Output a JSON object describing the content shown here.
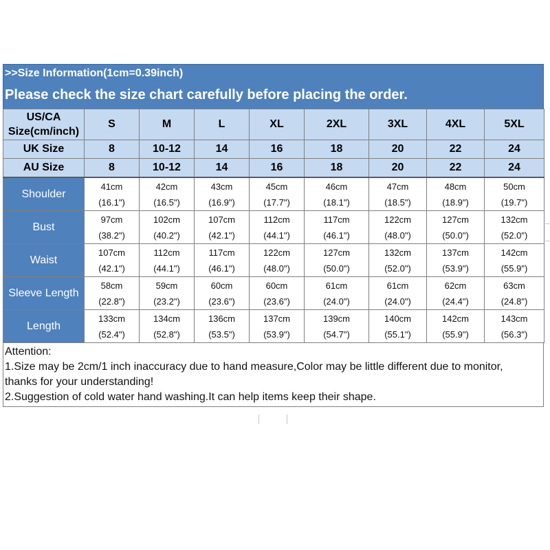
{
  "header": {
    "info": ">>Size Information(1cm=0.39inch)",
    "notice": "Please check the size chart carefully before placing the order."
  },
  "columns": {
    "us_label_line1": "US/CA",
    "us_label_line2": "Size(cm/inch)",
    "sizes": [
      "S",
      "M",
      "L",
      "XL",
      "2XL",
      "3XL",
      "4XL",
      "5XL"
    ]
  },
  "uk": {
    "label": "UK Size",
    "values": [
      "8",
      "10-12",
      "14",
      "16",
      "18",
      "20",
      "22",
      "24"
    ]
  },
  "au": {
    "label": "AU Size",
    "values": [
      "8",
      "10-12",
      "14",
      "16",
      "18",
      "20",
      "22",
      "24"
    ]
  },
  "measurements": [
    {
      "label": "Shoulder",
      "cm": [
        "41cm",
        "42cm",
        "43cm",
        "45cm",
        "46cm",
        "47cm",
        "48cm",
        "50cm"
      ],
      "inch": [
        "(16.1\")",
        "(16.5\")",
        "(16.9\")",
        "(17.7\")",
        "(18.1\")",
        "(18.5\")",
        "(18.9\")",
        "(19.7\")"
      ]
    },
    {
      "label": "Bust",
      "cm": [
        "97cm",
        "102cm",
        "107cm",
        "112cm",
        "117cm",
        "122cm",
        "127cm",
        "132cm"
      ],
      "inch": [
        "(38.2\")",
        "(40.2\")",
        "(42.1\")",
        "(44.1\")",
        "(46.1\")",
        "(48.0\")",
        "(50.0\")",
        "(52.0\")"
      ]
    },
    {
      "label": "Waist",
      "cm": [
        "107cm",
        "112cm",
        "117cm",
        "122cm",
        "127cm",
        "132cm",
        "137cm",
        "142cm"
      ],
      "inch": [
        "(42.1\")",
        "(44.1\")",
        "(46.1\")",
        "(48.0\")",
        "(50.0\")",
        "(52.0\")",
        "(53.9\")",
        "(55.9\")"
      ]
    },
    {
      "label": "Sleeve Length",
      "cm": [
        "58cm",
        "59cm",
        "60cm",
        "60cm",
        "61cm",
        "61cm",
        "62cm",
        "63cm"
      ],
      "inch": [
        "(22.8\")",
        "(23.2\")",
        "(23.6\")",
        "(23.6\")",
        "(24.0\")",
        "(24.0\")",
        "(24.4\")",
        "(24.8\")"
      ]
    },
    {
      "label": "Length",
      "cm": [
        "133cm",
        "134cm",
        "136cm",
        "137cm",
        "139cm",
        "140cm",
        "142cm",
        "143cm"
      ],
      "inch": [
        "(52.4\")",
        "(52.8\")",
        "(53.5\")",
        "(53.9\")",
        "(54.7\")",
        "(55.1\")",
        "(55.9\")",
        "(56.3\")"
      ]
    }
  ],
  "notes": {
    "title": "Attention:",
    "line1a": "1.Size may be 2cm/1 inch inaccuracy due to hand measure,Color may be little different due to monitor,",
    "line1b": "thanks for your understanding!",
    "line2": "2.Suggestion of cold water hand washing.It can help items keep their shape."
  }
}
